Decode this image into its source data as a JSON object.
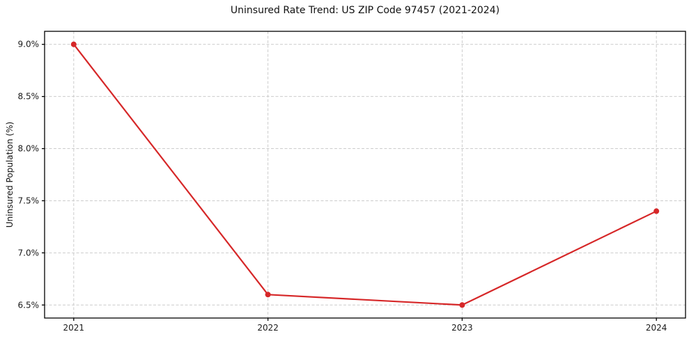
{
  "chart_data": {
    "type": "line",
    "title": "Uninsured Rate Trend: US ZIP Code 97457 (2021-2024)",
    "xlabel": "",
    "ylabel": "Uninsured Population (%)",
    "x": [
      2021,
      2022,
      2023,
      2024
    ],
    "x_tick_labels": [
      "2021",
      "2022",
      "2023",
      "2024"
    ],
    "series": [
      {
        "name": "Uninsured rate",
        "values": [
          9.0,
          6.6,
          6.5,
          7.4
        ]
      }
    ],
    "values": [
      9.0,
      6.6,
      6.5,
      7.4
    ],
    "yticks": [
      6.5,
      7.0,
      7.5,
      8.0,
      8.5,
      9.0
    ],
    "y_tick_labels": [
      "6.5%",
      "7.0%",
      "7.5%",
      "8.0%",
      "8.5%",
      "9.0%"
    ],
    "xlim": [
      2020.85,
      2024.15
    ],
    "ylim": [
      6.375,
      9.125
    ],
    "grid": true,
    "grid_style": "dashed",
    "legend": "none",
    "line_color": "#d62728",
    "marker": "circle",
    "grid_color": "#cccccc",
    "axis_color": "#000000",
    "background": "#ffffff"
  }
}
